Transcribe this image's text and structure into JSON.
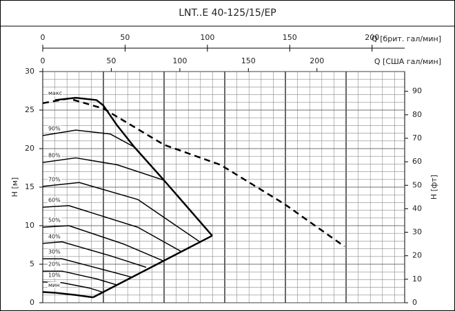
{
  "chart_data": {
    "type": "line",
    "title": "LNT..E 40-125/15/EP",
    "xlabel": "Q [США гал/мин]",
    "xlim": [
      0,
      264
    ],
    "xticks": [
      0,
      50,
      100,
      150,
      200
    ],
    "x2label": "Q [брит. гал/мин]",
    "x2lim": [
      0,
      219.8
    ],
    "x2ticks": [
      0,
      50,
      100,
      150,
      200
    ],
    "ylabel": "H [м]",
    "ylim": [
      0,
      30
    ],
    "yticks": [
      0,
      5,
      10,
      15,
      20,
      25,
      30
    ],
    "y2label": "H [фт]",
    "y2lim": [
      0,
      98.4
    ],
    "y2ticks": [
      0,
      10,
      20,
      30,
      40,
      50,
      60,
      70,
      80,
      90
    ],
    "grid": true,
    "series": [
      {
        "style": "dashed",
        "color": "#000000",
        "line_width": 2.5,
        "x": [
          0,
          19.1,
          44.2,
          88.4,
          129.6,
          176.4,
          220.1
        ],
        "values": [
          25.9,
          26.5,
          25.2,
          20.5,
          17.9,
          12.8,
          7.3
        ]
      },
      {
        "name": "макс",
        "color": "#000000",
        "line_width": 2.5,
        "x": [
          9.0,
          24.1,
          39.2,
          44.2,
          54.3,
          66.8,
          88.4,
          123.6
        ],
        "values": [
          26.3,
          26.6,
          26.3,
          25.6,
          23.0,
          20.2,
          15.9,
          8.7
        ]
      },
      {
        "name": "90%",
        "color": "#000000",
        "line_width": 1.5,
        "x": [
          0,
          24.1,
          49.2,
          66.8
        ],
        "values": [
          21.7,
          22.4,
          21.9,
          20.2
        ]
      },
      {
        "name": "80%",
        "color": "#000000",
        "line_width": 1.5,
        "x": [
          0,
          24.1,
          54.3,
          88.4
        ],
        "values": [
          18.2,
          18.8,
          17.9,
          15.9
        ]
      },
      {
        "name": "70%",
        "color": "#000000",
        "line_width": 1.5,
        "x": [
          0,
          26.6,
          69.3,
          114.6
        ],
        "values": [
          15.1,
          15.6,
          13.4,
          7.9
        ]
      },
      {
        "name": "60%",
        "color": "#000000",
        "line_width": 1.5,
        "x": [
          0,
          19.1,
          69.3,
          100.5
        ],
        "values": [
          12.4,
          12.6,
          9.8,
          6.7
        ]
      },
      {
        "name": "50%",
        "color": "#000000",
        "line_width": 1.5,
        "x": [
          0,
          19.1,
          59.3,
          88.4
        ],
        "values": [
          9.8,
          10.0,
          7.6,
          5.4
        ]
      },
      {
        "name": "40%",
        "color": "#000000",
        "line_width": 1.5,
        "x": [
          0,
          14.1,
          49.2,
          75.4
        ],
        "values": [
          7.7,
          7.9,
          6.1,
          4.6
        ]
      },
      {
        "name": "30%",
        "color": "#000000",
        "line_width": 1.5,
        "x": [
          0,
          14.1,
          44.2,
          65.3
        ],
        "values": [
          5.7,
          5.7,
          4.3,
          3.3
        ]
      },
      {
        "name": "20%",
        "color": "#000000",
        "line_width": 1.5,
        "x": [
          0,
          14.1,
          39.2,
          54.3
        ],
        "values": [
          4.1,
          4.1,
          3.1,
          2.3
        ]
      },
      {
        "name": "10%",
        "color": "#000000",
        "line_width": 1.5,
        "x": [
          0,
          14.1,
          34.2,
          43.2
        ],
        "values": [
          2.7,
          2.6,
          1.9,
          1.4
        ]
      },
      {
        "name": "мин",
        "color": "#000000",
        "line_width": 2.5,
        "x": [
          0,
          9.0,
          24.1,
          36.7
        ],
        "values": [
          1.4,
          1.3,
          1.0,
          0.7
        ]
      },
      {
        "color": "#000000",
        "line_width": 2.5,
        "x": [
          36.7,
          123.6
        ],
        "values": [
          0.7,
          8.7
        ]
      }
    ]
  }
}
